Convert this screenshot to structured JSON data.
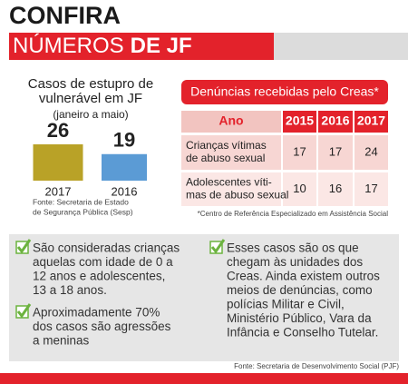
{
  "header": {
    "title": "CONFIRA",
    "subtitle": [
      "NÚMEROS",
      "DE JF"
    ]
  },
  "bar_chart": {
    "type": "bar",
    "title": [
      "Casos de estupro de",
      "vulnerável em JF"
    ],
    "subtitle": "(janeiro a maio)",
    "categories": [
      "2017",
      "2016"
    ],
    "values": [
      26,
      19
    ],
    "colors": [
      "#b9a227",
      "#5b9bd5"
    ],
    "source": [
      "Fonte: Secretaria de Estado",
      "de Segurança Pública (Sesp)"
    ]
  },
  "table": {
    "title": "Denúncias recebidas pelo Creas*",
    "columns": [
      "Ano",
      "2015",
      "2016",
      "2017"
    ],
    "rows": [
      {
        "label": [
          "Crianças vítimas",
          "de abuso sexual"
        ],
        "values": [
          17,
          17,
          24
        ]
      },
      {
        "label": [
          "Adolescentes víti-",
          "mas de abuso sexual"
        ],
        "values": [
          10,
          16,
          17
        ]
      }
    ],
    "footnote": "*Centro de Referência Especializado em Assistência Social"
  },
  "notes": {
    "left": [
      [
        "São consideradas crianças",
        "aquelas com idade de 0 a",
        "12 anos e adolescentes,",
        "13 a 18 anos."
      ],
      [
        "Aproximadamente 70%",
        "dos casos são agressões",
        "a meninas"
      ]
    ],
    "right": [
      [
        "Esses casos são os que",
        "chegam às unidades dos",
        "Creas. Ainda existem outros",
        "meios de denúncias, como",
        "polícias Militar e Civil,",
        "Ministério Público, Vara da",
        "Infância e Conselho Tutelar."
      ]
    ]
  },
  "source": "Fonte: Secretaria de Desenvolvimento Social (PJF)"
}
